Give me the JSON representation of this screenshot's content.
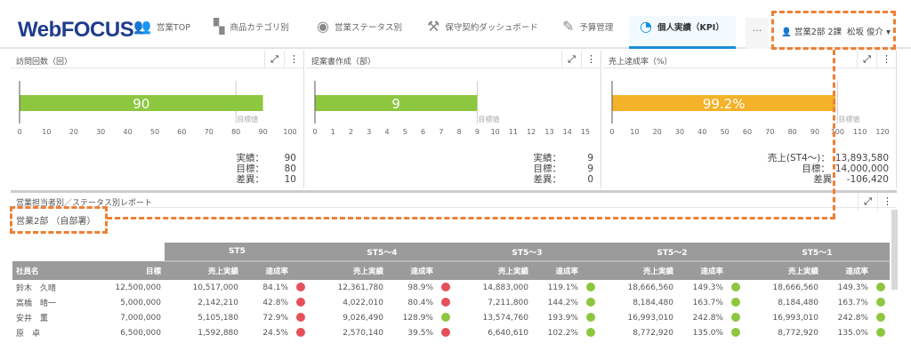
{
  "nav": {
    "logo": "WebFOCUS",
    "tabs": [
      {
        "label": "営業TOP",
        "icon": "users-icon"
      },
      {
        "label": "商品カテゴリ別",
        "icon": "sitemap-icon"
      },
      {
        "label": "営業ステータス別",
        "icon": "eye-icon"
      },
      {
        "label": "保守契約ダッシュボード",
        "icon": "hammer-icon"
      },
      {
        "label": "予算管理",
        "icon": "edit-icon"
      },
      {
        "label": "個人実績（KPI）",
        "icon": "gauge-icon",
        "active": true
      }
    ],
    "more": "···",
    "user": {
      "dept": "営業2部 2課",
      "name": "松坂 俊介"
    }
  },
  "panels": [
    {
      "title": "訪問回数（回）",
      "value": 90,
      "bar_label": "90",
      "target": 80,
      "max": 100,
      "step": 10,
      "target_label": "目標値",
      "color": "#8dc63f",
      "stats": [
        {
          "k": "実績：",
          "v": "90"
        },
        {
          "k": "目標：",
          "v": "80"
        },
        {
          "k": "差異：",
          "v": "10"
        }
      ]
    },
    {
      "title": "提案書作成（部）",
      "value": 9,
      "bar_label": "9",
      "target": 9,
      "max": 15,
      "step": 1,
      "target_label": "目標値",
      "color": "#8dc63f",
      "stats": [
        {
          "k": "実績：",
          "v": "9"
        },
        {
          "k": "目標：",
          "v": "9"
        },
        {
          "k": "差異：",
          "v": "0"
        }
      ]
    },
    {
      "title": "売上達成率（%）",
      "value": 99.2,
      "bar_label": "99.2%",
      "target": 100,
      "max": 120,
      "step": 10,
      "target_label": "目標値",
      "color": "#f3b229",
      "stats": [
        {
          "k": "売上(ST4～)：",
          "v": "13,893,580"
        },
        {
          "k": "目標：",
          "v": "14,000,000"
        },
        {
          "k": "差異：",
          "v": "-106,420"
        }
      ]
    }
  ],
  "report": {
    "title": "営業担当者別／ステータス別レポート",
    "dept": "営業2部 （自部署）",
    "groups": [
      "ST5",
      "ST5～4",
      "ST5～3",
      "ST5～2",
      "ST5～1"
    ],
    "col_name": "社員名",
    "col_target": "目標",
    "col_sales": "売上実績",
    "col_rate": "達成率",
    "colors": {
      "red": "#e5505a",
      "green": "#8dc63f"
    },
    "rows": [
      {
        "name": "鈴木　久晴",
        "target": "12,500,000",
        "cells": [
          [
            "10,517,000",
            "84.1%",
            "red"
          ],
          [
            "12,361,780",
            "98.9%",
            "red"
          ],
          [
            "14,883,000",
            "119.1%",
            "green"
          ],
          [
            "18,666,560",
            "149.3%",
            "green"
          ],
          [
            "18,666,560",
            "149.3%",
            "green"
          ]
        ]
      },
      {
        "name": "高橋　晴一",
        "target": "5,000,000",
        "cells": [
          [
            "2,142,210",
            "42.8%",
            "red"
          ],
          [
            "4,022,010",
            "80.4%",
            "red"
          ],
          [
            "7,211,800",
            "144.2%",
            "green"
          ],
          [
            "8,184,480",
            "163.7%",
            "green"
          ],
          [
            "8,184,480",
            "163.7%",
            "green"
          ]
        ]
      },
      {
        "name": "安井　薫",
        "target": "7,000,000",
        "cells": [
          [
            "5,105,180",
            "72.9%",
            "red"
          ],
          [
            "9,026,490",
            "128.9%",
            "green"
          ],
          [
            "13,574,760",
            "193.9%",
            "green"
          ],
          [
            "16,993,010",
            "242.8%",
            "green"
          ],
          [
            "16,993,010",
            "242.8%",
            "green"
          ]
        ]
      },
      {
        "name": "原　卓",
        "target": "6,500,000",
        "cells": [
          [
            "1,592,880",
            "24.5%",
            "red"
          ],
          [
            "2,570,140",
            "39.5%",
            "red"
          ],
          [
            "6,640,610",
            "102.2%",
            "green"
          ],
          [
            "8,772,920",
            "135.0%",
            "green"
          ],
          [
            "8,772,920",
            "135.0%",
            "green"
          ]
        ]
      }
    ]
  }
}
